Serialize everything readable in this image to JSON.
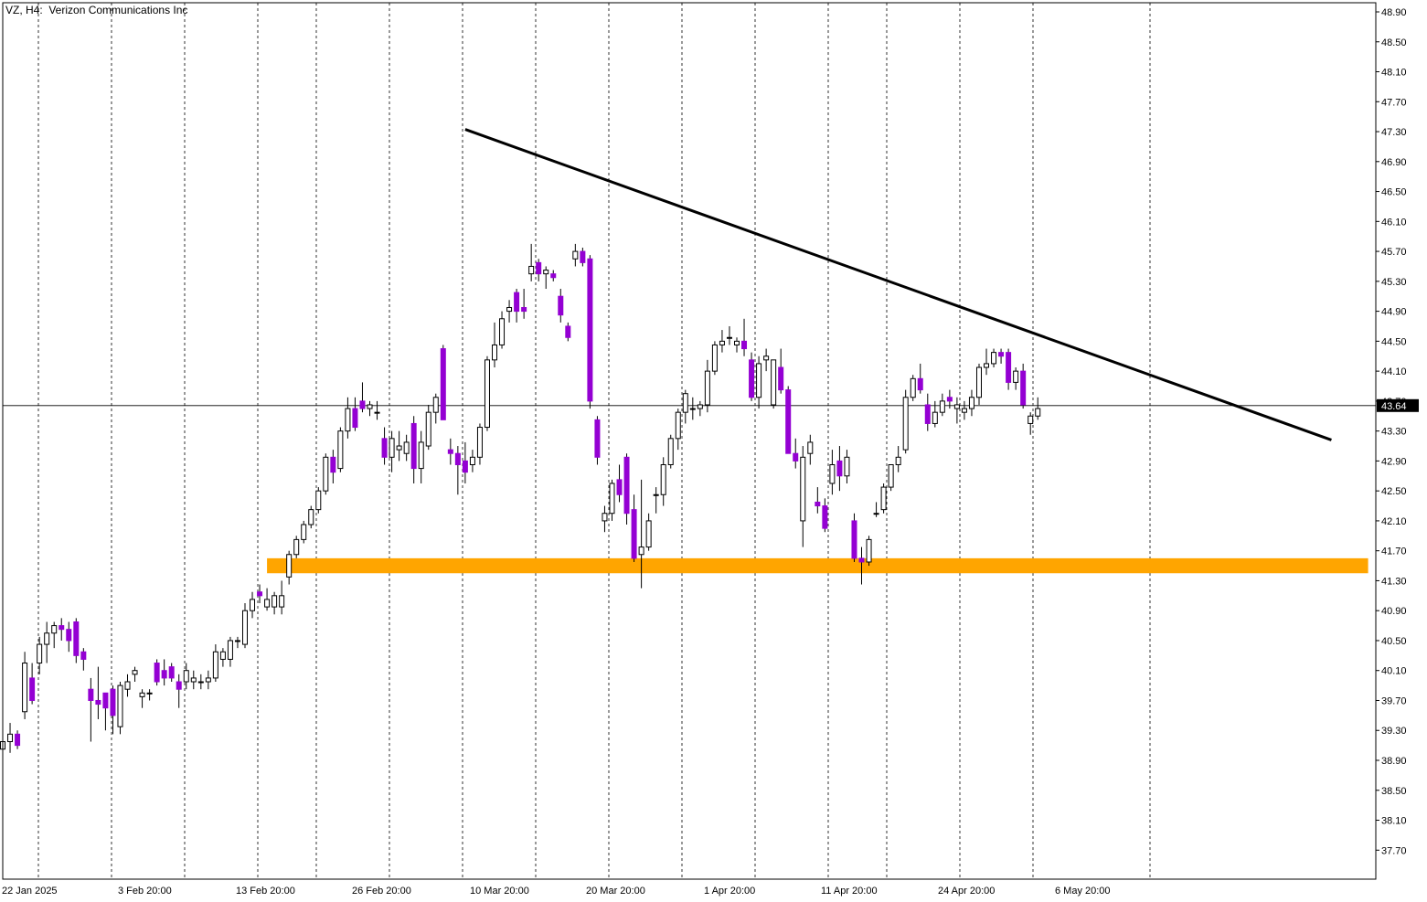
{
  "chart_data": {
    "type": "candlestick",
    "title": "VZ, H4:  Verizon Communications Inc",
    "symbol": "VZ",
    "timeframe": "H4",
    "instrument": "Verizon Communications Inc",
    "y_ticks": [
      "48.90",
      "48.50",
      "48.10",
      "47.70",
      "47.30",
      "46.90",
      "46.50",
      "46.10",
      "45.70",
      "45.30",
      "44.90",
      "44.50",
      "44.10",
      "43.70",
      "43.30",
      "42.90",
      "42.50",
      "42.10",
      "41.70",
      "41.30",
      "40.90",
      "40.50",
      "40.10",
      "39.70",
      "39.30",
      "38.90",
      "38.50",
      "38.10",
      "37.70"
    ],
    "x_ticks": [
      "22 Jan 2025",
      "3 Feb 20:00",
      "13 Feb 20:00",
      "26 Feb 20:00",
      "10 Mar 20:00",
      "20 Mar 20:00",
      "1 Apr 20:00",
      "11 Apr 20:00",
      "24 Apr 20:00",
      "6 May 20:00"
    ],
    "ylim": [
      37.3,
      49.05
    ],
    "grid": "vertical-dotted",
    "current_price": "43.64",
    "up_color": "#ffffff",
    "down_color": "#9400D3",
    "wick_color": "#000000",
    "trendline": {
      "from": {
        "candle": 63,
        "price": 47.33
      },
      "to": {
        "candle": 181,
        "price": 43.18
      },
      "color": "#000000"
    },
    "support_zone": {
      "from_candle": 36,
      "to_candle": 186,
      "low": 41.4,
      "high": 41.6,
      "color": "#FFA500"
    },
    "candles": [
      [
        39.05,
        39.25,
        38.95,
        39.15
      ],
      [
        39.15,
        39.4,
        39.0,
        39.25
      ],
      [
        39.25,
        39.3,
        39.05,
        39.1
      ],
      [
        39.55,
        40.35,
        39.45,
        40.2
      ],
      [
        40.0,
        40.2,
        39.65,
        39.7
      ],
      [
        40.2,
        40.55,
        40.05,
        40.45
      ],
      [
        40.45,
        40.75,
        40.2,
        40.6
      ],
      [
        40.6,
        40.75,
        40.4,
        40.7
      ],
      [
        40.7,
        40.8,
        40.5,
        40.65
      ],
      [
        40.65,
        40.75,
        40.35,
        40.5
      ],
      [
        40.75,
        40.8,
        40.2,
        40.3
      ],
      [
        40.35,
        40.4,
        40.1,
        40.25
      ],
      [
        39.85,
        40.0,
        39.15,
        39.7
      ],
      [
        39.7,
        40.15,
        39.45,
        39.65
      ],
      [
        39.8,
        39.8,
        39.3,
        39.6
      ],
      [
        39.85,
        39.9,
        39.25,
        39.5
      ],
      [
        39.35,
        39.95,
        39.25,
        39.9
      ],
      [
        39.85,
        40.05,
        39.75,
        39.95
      ],
      [
        40.05,
        40.15,
        39.95,
        40.1
      ],
      [
        39.75,
        39.85,
        39.6,
        39.8
      ],
      [
        39.8,
        39.85,
        39.7,
        39.8
      ],
      [
        40.2,
        40.25,
        39.9,
        39.95
      ],
      [
        40.1,
        40.25,
        39.9,
        40.0
      ],
      [
        40.15,
        40.2,
        39.95,
        40.0
      ],
      [
        39.95,
        40.05,
        39.6,
        39.85
      ],
      [
        39.95,
        40.2,
        39.85,
        40.1
      ],
      [
        39.95,
        40.1,
        39.85,
        40.0
      ],
      [
        39.95,
        40.05,
        39.85,
        39.95
      ],
      [
        39.95,
        40.1,
        39.85,
        40.0
      ],
      [
        40.0,
        40.45,
        39.95,
        40.35
      ],
      [
        40.25,
        40.4,
        40.15,
        40.35
      ],
      [
        40.25,
        40.55,
        40.15,
        40.5
      ],
      [
        40.5,
        40.55,
        40.4,
        40.5
      ],
      [
        40.45,
        41.0,
        40.4,
        40.9
      ],
      [
        40.9,
        41.15,
        40.8,
        41.05
      ],
      [
        41.15,
        41.25,
        41.0,
        41.1
      ],
      [
        40.95,
        41.2,
        40.9,
        41.05
      ],
      [
        40.95,
        41.15,
        40.85,
        41.1
      ],
      [
        40.95,
        41.3,
        40.85,
        41.1
      ],
      [
        41.35,
        41.7,
        41.25,
        41.65
      ],
      [
        41.65,
        41.9,
        41.6,
        41.85
      ],
      [
        41.85,
        42.1,
        41.8,
        42.05
      ],
      [
        42.05,
        42.3,
        42.0,
        42.25
      ],
      [
        42.25,
        42.55,
        42.2,
        42.5
      ],
      [
        42.5,
        43.0,
        42.45,
        42.95
      ],
      [
        42.95,
        43.05,
        42.6,
        42.75
      ],
      [
        42.8,
        43.35,
        42.75,
        43.3
      ],
      [
        43.3,
        43.75,
        43.2,
        43.6
      ],
      [
        43.6,
        43.75,
        43.3,
        43.35
      ],
      [
        43.7,
        43.95,
        43.55,
        43.6
      ],
      [
        43.6,
        43.7,
        43.5,
        43.65
      ],
      [
        43.55,
        43.7,
        43.45,
        43.55
      ],
      [
        43.2,
        43.35,
        42.85,
        42.95
      ],
      [
        42.95,
        43.3,
        42.75,
        43.2
      ],
      [
        43.05,
        43.3,
        42.9,
        43.1
      ],
      [
        43.0,
        43.25,
        42.9,
        43.15
      ],
      [
        43.4,
        43.5,
        42.6,
        42.8
      ],
      [
        42.8,
        43.3,
        42.6,
        43.15
      ],
      [
        43.1,
        43.65,
        43.05,
        43.55
      ],
      [
        43.55,
        43.8,
        43.4,
        43.75
      ],
      [
        44.4,
        44.45,
        43.45,
        43.45
      ],
      [
        43.05,
        43.2,
        42.85,
        43.0
      ],
      [
        43.0,
        43.1,
        42.45,
        42.85
      ],
      [
        42.9,
        43.15,
        42.6,
        42.75
      ],
      [
        42.85,
        43.05,
        42.75,
        42.95
      ],
      [
        42.95,
        43.4,
        42.85,
        43.35
      ],
      [
        43.35,
        44.3,
        43.3,
        44.25
      ],
      [
        44.25,
        44.75,
        44.15,
        44.45
      ],
      [
        44.45,
        44.9,
        44.4,
        44.8
      ],
      [
        44.9,
        45.05,
        44.75,
        44.95
      ],
      [
        45.15,
        45.2,
        44.75,
        44.9
      ],
      [
        44.95,
        45.2,
        44.8,
        44.9
      ],
      [
        45.4,
        45.8,
        45.3,
        45.5
      ],
      [
        45.55,
        45.6,
        45.3,
        45.4
      ],
      [
        45.4,
        45.5,
        45.2,
        45.45
      ],
      [
        45.4,
        45.45,
        45.3,
        45.35
      ],
      [
        45.1,
        45.2,
        44.75,
        44.85
      ],
      [
        44.7,
        44.75,
        44.5,
        44.55
      ],
      [
        45.6,
        45.8,
        45.5,
        45.7
      ],
      [
        45.7,
        45.75,
        45.5,
        45.55
      ],
      [
        45.6,
        45.65,
        43.6,
        43.7
      ],
      [
        43.45,
        43.5,
        42.85,
        42.95
      ],
      [
        42.1,
        42.3,
        41.95,
        42.2
      ],
      [
        42.2,
        42.65,
        42.1,
        42.6
      ],
      [
        42.65,
        42.85,
        42.35,
        42.45
      ],
      [
        42.95,
        43.0,
        42.05,
        42.2
      ],
      [
        42.25,
        42.45,
        41.55,
        41.6
      ],
      [
        41.65,
        42.65,
        41.2,
        41.75
      ],
      [
        41.75,
        42.2,
        41.7,
        42.1
      ],
      [
        42.45,
        42.55,
        42.2,
        42.45
      ],
      [
        42.45,
        42.95,
        42.3,
        42.85
      ],
      [
        42.85,
        43.25,
        42.8,
        43.2
      ],
      [
        43.2,
        43.6,
        43.05,
        43.55
      ],
      [
        43.55,
        43.85,
        43.4,
        43.8
      ],
      [
        43.6,
        43.75,
        43.45,
        43.6
      ],
      [
        43.6,
        43.7,
        43.5,
        43.65
      ],
      [
        43.65,
        44.25,
        43.55,
        44.1
      ],
      [
        44.1,
        44.5,
        44.05,
        44.45
      ],
      [
        44.45,
        44.65,
        44.35,
        44.5
      ],
      [
        44.55,
        44.7,
        44.45,
        44.55
      ],
      [
        44.45,
        44.55,
        44.35,
        44.5
      ],
      [
        44.5,
        44.8,
        44.3,
        44.4
      ],
      [
        44.25,
        44.35,
        43.7,
        43.75
      ],
      [
        43.75,
        44.3,
        43.6,
        44.2
      ],
      [
        44.25,
        44.4,
        44.1,
        44.3
      ],
      [
        43.65,
        44.2,
        43.6,
        44.25
      ],
      [
        44.15,
        44.4,
        43.8,
        43.85
      ],
      [
        43.85,
        43.9,
        43.0,
        43.0
      ],
      [
        43.0,
        43.2,
        42.8,
        42.9
      ],
      [
        42.1,
        43.1,
        41.75,
        42.95
      ],
      [
        43.0,
        43.25,
        42.85,
        43.15
      ],
      [
        42.35,
        42.55,
        42.2,
        42.3
      ],
      [
        42.3,
        42.4,
        41.95,
        42.0
      ],
      [
        42.6,
        43.05,
        42.45,
        42.85
      ],
      [
        42.9,
        43.1,
        42.5,
        42.7
      ],
      [
        42.7,
        43.05,
        42.6,
        42.95
      ],
      [
        42.1,
        42.2,
        41.55,
        41.6
      ],
      [
        41.6,
        41.75,
        41.25,
        41.55
      ],
      [
        41.55,
        41.9,
        41.5,
        41.85
      ],
      [
        42.2,
        42.35,
        42.15,
        42.2
      ],
      [
        42.25,
        42.6,
        42.2,
        42.55
      ],
      [
        42.55,
        42.85,
        42.5,
        42.85
      ],
      [
        42.85,
        43.1,
        42.75,
        42.95
      ],
      [
        43.05,
        43.85,
        43.0,
        43.75
      ],
      [
        43.75,
        44.05,
        43.7,
        44.0
      ],
      [
        44.0,
        44.2,
        43.8,
        43.85
      ],
      [
        43.65,
        43.8,
        43.3,
        43.4
      ],
      [
        43.4,
        43.7,
        43.35,
        43.55
      ],
      [
        43.55,
        43.8,
        43.5,
        43.7
      ],
      [
        43.75,
        43.85,
        43.6,
        43.7
      ],
      [
        43.6,
        43.75,
        43.4,
        43.65
      ],
      [
        43.55,
        43.7,
        43.45,
        43.6
      ],
      [
        43.6,
        43.85,
        43.5,
        43.75
      ],
      [
        43.75,
        44.2,
        43.65,
        44.15
      ],
      [
        44.15,
        44.4,
        44.05,
        44.2
      ],
      [
        44.2,
        44.4,
        44.15,
        44.35
      ],
      [
        44.35,
        44.4,
        44.2,
        44.3
      ],
      [
        44.35,
        44.4,
        43.85,
        43.95
      ],
      [
        43.95,
        44.15,
        43.85,
        44.1
      ],
      [
        44.1,
        44.2,
        43.6,
        43.65
      ],
      [
        43.4,
        43.55,
        43.25,
        43.5
      ],
      [
        43.5,
        43.75,
        43.45,
        43.6
      ]
    ]
  }
}
